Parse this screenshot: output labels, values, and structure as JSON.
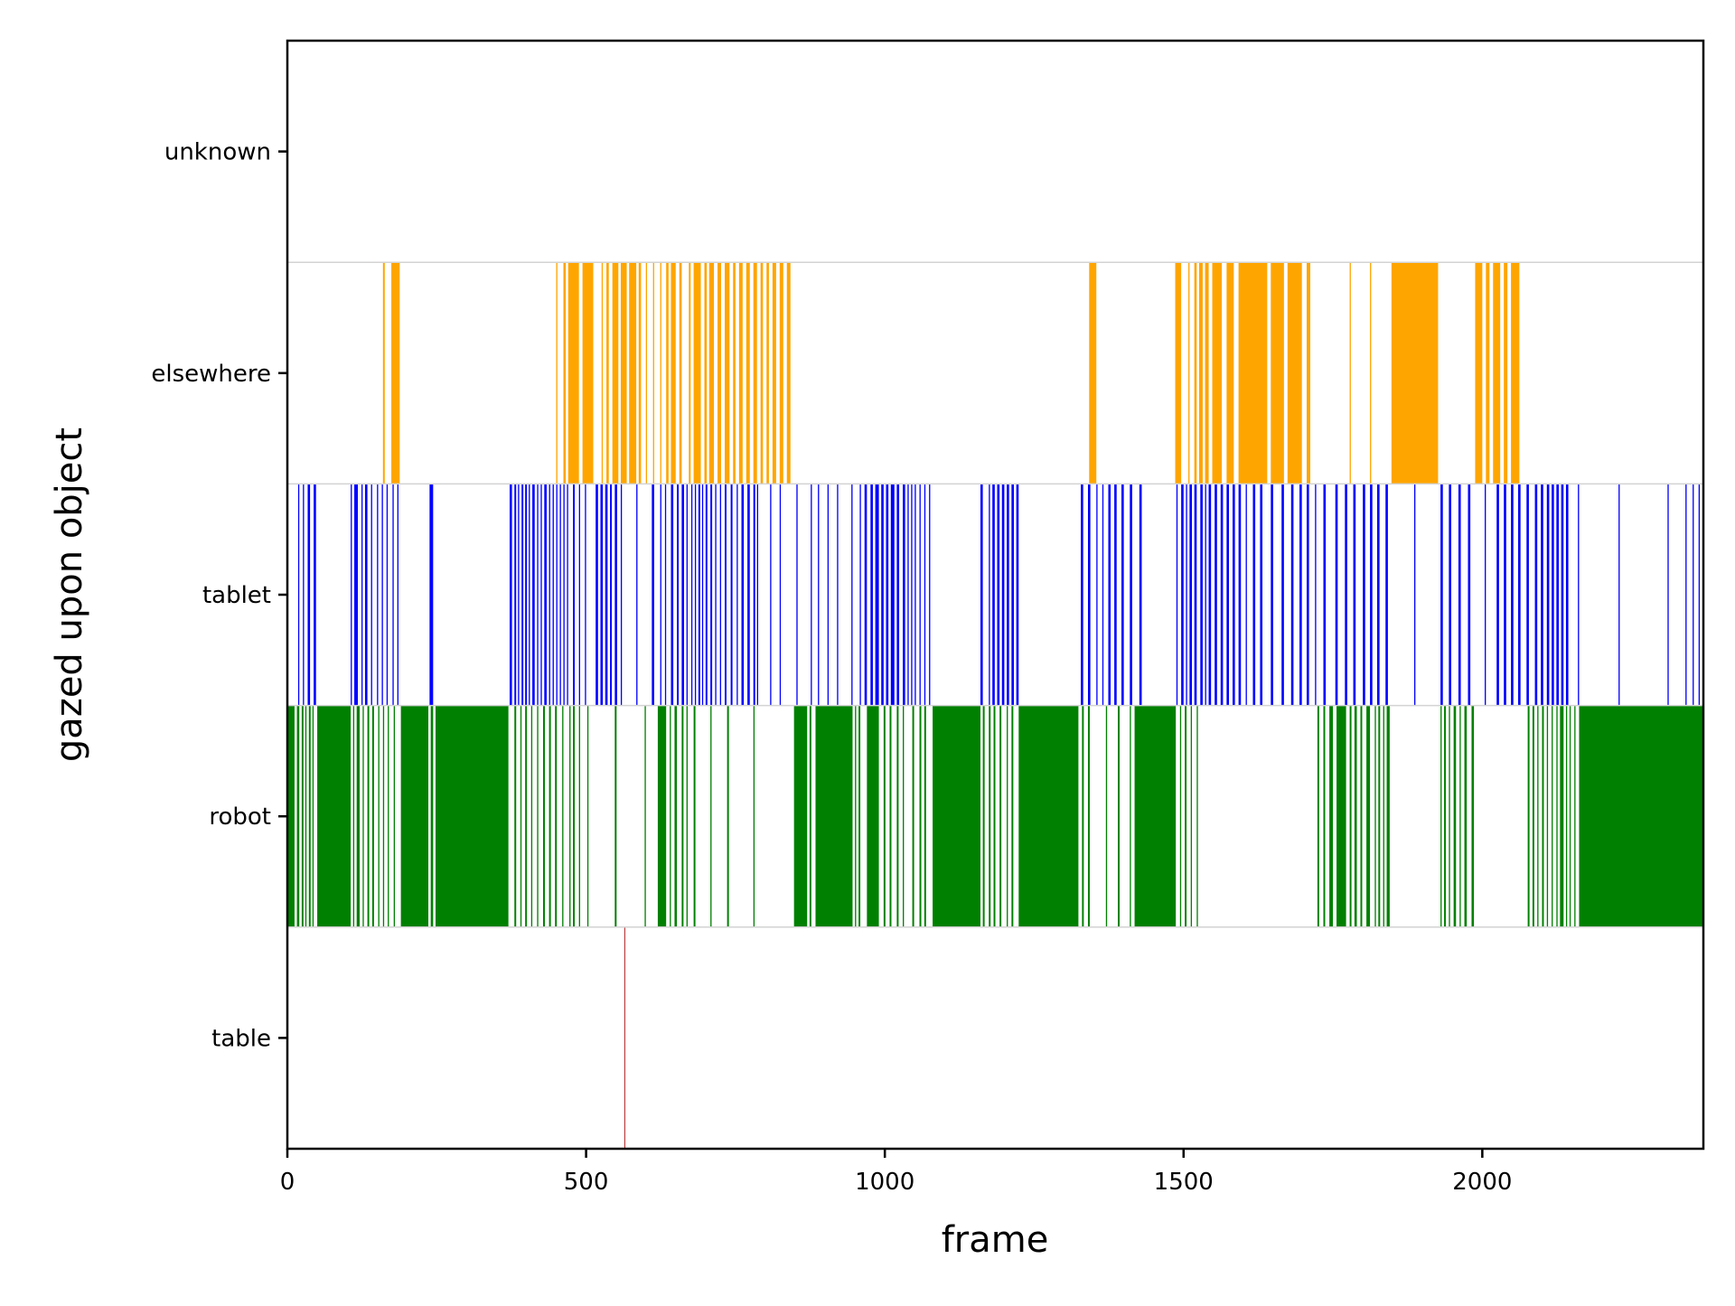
{
  "chart_data": {
    "type": "event-raster",
    "title": "",
    "xlabel": "frame",
    "ylabel": "gazed upon object",
    "xlim": [
      0,
      2370
    ],
    "xticks": [
      0,
      500,
      1000,
      1500,
      2000
    ],
    "xtick_labels": [
      "0",
      "500",
      "1000",
      "1500",
      "2000"
    ],
    "categories": [
      "table",
      "robot",
      "tablet",
      "elsewhere",
      "unknown"
    ],
    "colors": {
      "table": "#b22222",
      "robot": "#008000",
      "tablet": "#0000ff",
      "elsewhere": "#ffa500",
      "unknown": "#808080"
    },
    "separator_color": "#d3d3d3",
    "series": [
      {
        "name": "table",
        "intervals": [
          [
            564,
            565
          ]
        ]
      },
      {
        "name": "robot",
        "intervals": [
          [
            0,
            12
          ],
          [
            16,
            20
          ],
          [
            24,
            27
          ],
          [
            30,
            32
          ],
          [
            36,
            39
          ],
          [
            42,
            44
          ],
          [
            50,
            106
          ],
          [
            110,
            112
          ],
          [
            116,
            121
          ],
          [
            126,
            128
          ],
          [
            134,
            137
          ],
          [
            142,
            145
          ],
          [
            152,
            154
          ],
          [
            160,
            162
          ],
          [
            168,
            170
          ],
          [
            178,
            180
          ],
          [
            190,
            236
          ],
          [
            240,
            244
          ],
          [
            248,
            370
          ],
          [
            380,
            383
          ],
          [
            390,
            392
          ],
          [
            398,
            401
          ],
          [
            408,
            410
          ],
          [
            418,
            420
          ],
          [
            428,
            431
          ],
          [
            438,
            441
          ],
          [
            448,
            451
          ],
          [
            460,
            462
          ],
          [
            472,
            474
          ],
          [
            478,
            481
          ],
          [
            488,
            490
          ],
          [
            502,
            504
          ],
          [
            548,
            551
          ],
          [
            598,
            600
          ],
          [
            620,
            634
          ],
          [
            640,
            642
          ],
          [
            648,
            652
          ],
          [
            660,
            663
          ],
          [
            668,
            670
          ],
          [
            680,
            683
          ],
          [
            708,
            710
          ],
          [
            736,
            739
          ],
          [
            780,
            782
          ],
          [
            848,
            870
          ],
          [
            874,
            877
          ],
          [
            884,
            946
          ],
          [
            950,
            952
          ],
          [
            956,
            959
          ],
          [
            970,
            990
          ],
          [
            998,
            1001
          ],
          [
            1008,
            1011
          ],
          [
            1020,
            1023
          ],
          [
            1030,
            1032
          ],
          [
            1046,
            1049
          ],
          [
            1058,
            1061
          ],
          [
            1066,
            1069
          ],
          [
            1080,
            1160
          ],
          [
            1164,
            1167
          ],
          [
            1174,
            1177
          ],
          [
            1182,
            1185
          ],
          [
            1192,
            1195
          ],
          [
            1204,
            1206
          ],
          [
            1212,
            1215
          ],
          [
            1224,
            1324
          ],
          [
            1330,
            1333
          ],
          [
            1340,
            1343
          ],
          [
            1370,
            1372
          ],
          [
            1390,
            1393
          ],
          [
            1410,
            1412
          ],
          [
            1418,
            1487
          ],
          [
            1494,
            1496
          ],
          [
            1502,
            1505
          ],
          [
            1512,
            1514
          ],
          [
            1522,
            1524
          ],
          [
            1724,
            1727
          ],
          [
            1734,
            1737
          ],
          [
            1744,
            1750
          ],
          [
            1756,
            1772
          ],
          [
            1778,
            1781
          ],
          [
            1786,
            1790
          ],
          [
            1796,
            1799
          ],
          [
            1806,
            1812
          ],
          [
            1820,
            1822
          ],
          [
            1826,
            1829
          ],
          [
            1834,
            1836
          ],
          [
            1840,
            1845
          ],
          [
            1930,
            1932
          ],
          [
            1936,
            1939
          ],
          [
            1944,
            1946
          ],
          [
            1952,
            1956
          ],
          [
            1962,
            1964
          ],
          [
            1970,
            1974
          ],
          [
            1982,
            1986
          ],
          [
            2076,
            2079
          ],
          [
            2084,
            2087
          ],
          [
            2092,
            2094
          ],
          [
            2100,
            2103
          ],
          [
            2108,
            2110
          ],
          [
            2116,
            2118
          ],
          [
            2124,
            2126
          ],
          [
            2130,
            2136
          ],
          [
            2140,
            2142
          ],
          [
            2146,
            2148
          ],
          [
            2154,
            2156
          ],
          [
            2162,
            2370
          ]
        ]
      },
      {
        "name": "tablet",
        "intervals": [
          [
            18,
            20
          ],
          [
            26,
            28
          ],
          [
            34,
            38
          ],
          [
            44,
            48
          ],
          [
            106,
            108
          ],
          [
            112,
            118
          ],
          [
            124,
            126
          ],
          [
            130,
            134
          ],
          [
            140,
            142
          ],
          [
            150,
            152
          ],
          [
            158,
            160
          ],
          [
            166,
            168
          ],
          [
            176,
            178
          ],
          [
            184,
            186
          ],
          [
            238,
            244
          ],
          [
            372,
            376
          ],
          [
            380,
            383
          ],
          [
            386,
            388
          ],
          [
            392,
            395
          ],
          [
            398,
            401
          ],
          [
            404,
            406
          ],
          [
            410,
            414
          ],
          [
            418,
            420
          ],
          [
            424,
            426
          ],
          [
            430,
            434
          ],
          [
            438,
            440
          ],
          [
            444,
            446
          ],
          [
            450,
            452
          ],
          [
            456,
            458
          ],
          [
            462,
            464
          ],
          [
            468,
            470
          ],
          [
            478,
            481
          ],
          [
            488,
            490
          ],
          [
            498,
            500
          ],
          [
            516,
            520
          ],
          [
            524,
            528
          ],
          [
            532,
            536
          ],
          [
            540,
            543
          ],
          [
            548,
            552
          ],
          [
            558,
            560
          ],
          [
            584,
            586
          ],
          [
            610,
            614
          ],
          [
            624,
            626
          ],
          [
            632,
            634
          ],
          [
            642,
            646
          ],
          [
            652,
            655
          ],
          [
            660,
            664
          ],
          [
            668,
            670
          ],
          [
            676,
            678
          ],
          [
            682,
            684
          ],
          [
            688,
            691
          ],
          [
            694,
            696
          ],
          [
            700,
            703
          ],
          [
            708,
            711
          ],
          [
            716,
            718
          ],
          [
            724,
            726
          ],
          [
            732,
            735
          ],
          [
            742,
            745
          ],
          [
            752,
            754
          ],
          [
            760,
            764
          ],
          [
            770,
            774
          ],
          [
            780,
            783
          ],
          [
            786,
            788
          ],
          [
            808,
            810
          ],
          [
            824,
            826
          ],
          [
            852,
            854
          ],
          [
            876,
            878
          ],
          [
            888,
            890
          ],
          [
            904,
            906
          ],
          [
            920,
            922
          ],
          [
            944,
            946
          ],
          [
            958,
            960
          ],
          [
            966,
            970
          ],
          [
            976,
            980
          ],
          [
            984,
            990
          ],
          [
            994,
            998
          ],
          [
            1002,
            1006
          ],
          [
            1010,
            1016
          ],
          [
            1020,
            1024
          ],
          [
            1030,
            1034
          ],
          [
            1038,
            1040
          ],
          [
            1044,
            1046
          ],
          [
            1050,
            1052
          ],
          [
            1058,
            1060
          ],
          [
            1066,
            1068
          ],
          [
            1074,
            1076
          ],
          [
            1160,
            1164
          ],
          [
            1174,
            1176
          ],
          [
            1180,
            1184
          ],
          [
            1188,
            1192
          ],
          [
            1196,
            1200
          ],
          [
            1204,
            1208
          ],
          [
            1212,
            1216
          ],
          [
            1220,
            1224
          ],
          [
            1328,
            1332
          ],
          [
            1340,
            1344
          ],
          [
            1354,
            1356
          ],
          [
            1364,
            1366
          ],
          [
            1374,
            1378
          ],
          [
            1384,
            1388
          ],
          [
            1396,
            1400
          ],
          [
            1410,
            1414
          ],
          [
            1426,
            1430
          ],
          [
            1488,
            1490
          ],
          [
            1496,
            1500
          ],
          [
            1504,
            1506
          ],
          [
            1510,
            1514
          ],
          [
            1518,
            1522
          ],
          [
            1528,
            1532
          ],
          [
            1536,
            1538
          ],
          [
            1542,
            1546
          ],
          [
            1552,
            1556
          ],
          [
            1562,
            1566
          ],
          [
            1572,
            1576
          ],
          [
            1582,
            1586
          ],
          [
            1592,
            1596
          ],
          [
            1604,
            1606
          ],
          [
            1616,
            1620
          ],
          [
            1628,
            1632
          ],
          [
            1646,
            1650
          ],
          [
            1664,
            1668
          ],
          [
            1680,
            1684
          ],
          [
            1694,
            1698
          ],
          [
            1706,
            1710
          ],
          [
            1720,
            1722
          ],
          [
            1734,
            1738
          ],
          [
            1754,
            1758
          ],
          [
            1770,
            1774
          ],
          [
            1784,
            1788
          ],
          [
            1800,
            1804
          ],
          [
            1812,
            1816
          ],
          [
            1824,
            1828
          ],
          [
            1838,
            1842
          ],
          [
            1886,
            1888
          ],
          [
            1930,
            1934
          ],
          [
            1944,
            1948
          ],
          [
            1960,
            1964
          ],
          [
            1976,
            1980
          ],
          [
            2004,
            2006
          ],
          [
            2024,
            2028
          ],
          [
            2036,
            2040
          ],
          [
            2048,
            2052
          ],
          [
            2060,
            2064
          ],
          [
            2074,
            2078
          ],
          [
            2088,
            2092
          ],
          [
            2098,
            2102
          ],
          [
            2108,
            2112
          ],
          [
            2116,
            2120
          ],
          [
            2124,
            2128
          ],
          [
            2132,
            2136
          ],
          [
            2140,
            2144
          ],
          [
            2160,
            2162
          ],
          [
            2228,
            2230
          ],
          [
            2310,
            2312
          ],
          [
            2340,
            2342
          ],
          [
            2352,
            2354
          ],
          [
            2362,
            2364
          ]
        ]
      },
      {
        "name": "elsewhere",
        "intervals": [
          [
            160,
            163
          ],
          [
            174,
            188
          ],
          [
            450,
            452
          ],
          [
            462,
            466
          ],
          [
            470,
            488
          ],
          [
            494,
            512
          ],
          [
            526,
            528
          ],
          [
            534,
            538
          ],
          [
            544,
            554
          ],
          [
            558,
            568
          ],
          [
            572,
            584
          ],
          [
            588,
            592
          ],
          [
            600,
            602
          ],
          [
            612,
            614
          ],
          [
            624,
            626
          ],
          [
            634,
            638
          ],
          [
            642,
            650
          ],
          [
            656,
            660
          ],
          [
            672,
            675
          ],
          [
            680,
            692
          ],
          [
            698,
            702
          ],
          [
            706,
            714
          ],
          [
            720,
            726
          ],
          [
            732,
            740
          ],
          [
            746,
            750
          ],
          [
            756,
            762
          ],
          [
            768,
            774
          ],
          [
            780,
            786
          ],
          [
            792,
            796
          ],
          [
            802,
            806
          ],
          [
            812,
            818
          ],
          [
            824,
            830
          ],
          [
            836,
            842
          ],
          [
            1342,
            1354
          ],
          [
            1486,
            1496
          ],
          [
            1508,
            1510
          ],
          [
            1518,
            1522
          ],
          [
            1526,
            1532
          ],
          [
            1536,
            1542
          ],
          [
            1548,
            1564
          ],
          [
            1572,
            1584
          ],
          [
            1592,
            1640
          ],
          [
            1646,
            1668
          ],
          [
            1674,
            1698
          ],
          [
            1706,
            1712
          ],
          [
            1778,
            1780
          ],
          [
            1812,
            1814
          ],
          [
            1848,
            1926
          ],
          [
            1988,
            2000
          ],
          [
            2006,
            2012
          ],
          [
            2018,
            2030
          ],
          [
            2036,
            2042
          ],
          [
            2048,
            2062
          ]
        ]
      },
      {
        "name": "unknown",
        "intervals": []
      }
    ]
  }
}
